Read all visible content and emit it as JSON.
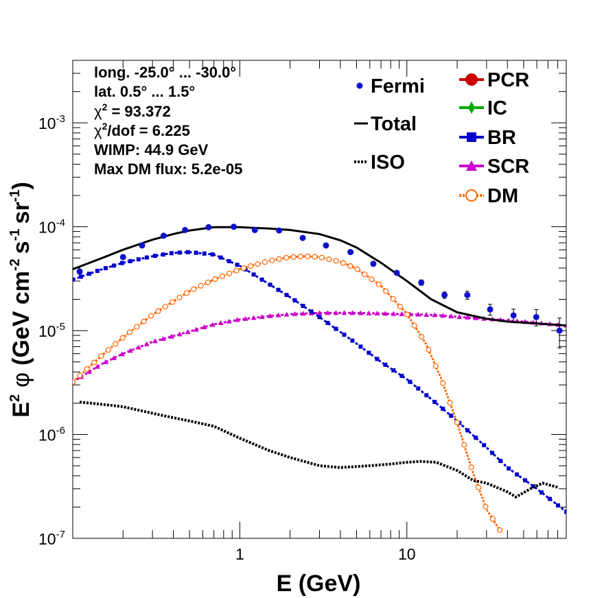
{
  "chart_data": {
    "type": "scatter",
    "xlabel": "E (GeV)",
    "ylabel_parts": {
      "pre": "E",
      "pre_sup": "2",
      "phi": "φ",
      "unit_open": "(GeV cm",
      "cm_exp": "-2",
      "s": "s",
      "s_exp": "-1",
      "sr": "sr",
      "sr_exp": "-1",
      "unit_close": ")"
    },
    "x_scale": "log",
    "y_scale": "log",
    "xlim": [
      0.1,
      90
    ],
    "ylim": [
      1e-07,
      0.004
    ],
    "x_tick_labels": [
      {
        "value": 1,
        "label": "1"
      },
      {
        "value": 10,
        "label": "10"
      }
    ],
    "y_tick_labels": [
      {
        "value": 1e-07,
        "mantissa": "10",
        "exp": "-7"
      },
      {
        "value": 1e-06,
        "mantissa": "10",
        "exp": "-6"
      },
      {
        "value": 1e-05,
        "mantissa": "10",
        "exp": "-5"
      },
      {
        "value": 0.0001,
        "mantissa": "10",
        "exp": "-4"
      },
      {
        "value": 0.001,
        "mantissa": "10",
        "exp": "-3"
      }
    ],
    "info_lines": [
      {
        "text": "long. -25.0° ... -30.0°"
      },
      {
        "text": "lat. 0.5° ... 1.5°"
      },
      {
        "chi": "χ",
        "sup": "2",
        "rest": " = 93.372"
      },
      {
        "chi": "χ",
        "sup": "2",
        "rest": "/dof = 6.225"
      },
      {
        "text": "WIMP: 44.9 GeV"
      },
      {
        "text": "Max DM flux: 5.2e-05"
      }
    ],
    "legend_left": [
      {
        "label": "Fermi",
        "symbol": "dot",
        "color": "#1010cc"
      },
      {
        "label": "Total",
        "symbol": "line",
        "color": "#000000"
      },
      {
        "label": "ISO",
        "symbol": "dotted",
        "color": "#000000"
      }
    ],
    "legend_right": [
      {
        "label": "PCR",
        "symbol": "circle",
        "color": "#cc0000"
      },
      {
        "label": "IC",
        "symbol": "diamond",
        "color": "#00aa00"
      },
      {
        "label": "BR",
        "symbol": "square",
        "color": "#0000cc"
      },
      {
        "label": "SCR",
        "symbol": "triangle",
        "color": "#cc00cc"
      },
      {
        "label": "DM",
        "symbol": "open-circle",
        "color": "#ff6600"
      }
    ],
    "series": [
      {
        "name": "Fermi",
        "kind": "points",
        "color": "#1010cc",
        "x": [
          0.11,
          0.2,
          0.26,
          0.35,
          0.47,
          0.65,
          0.92,
          1.23,
          1.72,
          2.38,
          3.28,
          4.6,
          6.3,
          8.7,
          12.2,
          16.8,
          23.0,
          31.5,
          43.5,
          59.5,
          82.0
        ],
        "y": [
          3.7e-05,
          5.1e-05,
          6.6e-05,
          8.2e-05,
          9.3e-05,
          9.9e-05,
          0.0001,
          9.3e-05,
          9.2e-05,
          7.8e-05,
          6.6e-05,
          5.7e-05,
          4.4e-05,
          3.6e-05,
          2.9e-05,
          2.2e-05,
          2.2e-05,
          1.6e-05,
          1.4e-05,
          1.35e-05,
          1e-05
        ],
        "err": [
          0.05,
          0.03,
          0.03,
          0.03,
          0.03,
          0.03,
          0.03,
          0.03,
          0.03,
          0.03,
          0.03,
          0.03,
          0.04,
          0.04,
          0.06,
          0.07,
          0.09,
          0.12,
          0.15,
          0.18,
          0.32
        ]
      },
      {
        "name": "Total",
        "kind": "line",
        "color": "#000000",
        "x": [
          0.1,
          0.15,
          0.2,
          0.3,
          0.4,
          0.5,
          0.7,
          1.0,
          1.5,
          2.0,
          3.0,
          4.0,
          5.0,
          7.0,
          10.0,
          14.0,
          20.0,
          30.0,
          40.0,
          60.0,
          90.0
        ],
        "y": [
          3.9e-05,
          5e-05,
          6e-05,
          7.5e-05,
          8.5e-05,
          9.2e-05,
          9.9e-05,
          9.9e-05,
          9.6e-05,
          9.3e-05,
          8.5e-05,
          7.4e-05,
          6.3e-05,
          4.5e-05,
          3e-05,
          2e-05,
          1.5e-05,
          1.3e-05,
          1.22e-05,
          1.17e-05,
          1.12e-05
        ]
      },
      {
        "name": "BR",
        "kind": "markers-square",
        "color": "#0000cc",
        "x": [
          0.1,
          0.15,
          0.2,
          0.3,
          0.4,
          0.5,
          0.7,
          1.0,
          1.5,
          2.0,
          3.0,
          5.0,
          7.0,
          10.0,
          15.0,
          20.0,
          30.0,
          40.0,
          60.0,
          90.0
        ],
        "y": [
          3.1e-05,
          3.9e-05,
          4.5e-05,
          5.2e-05,
          5.6e-05,
          5.7e-05,
          5.4e-05,
          4.2e-05,
          2.8e-05,
          2.1e-05,
          1.35e-05,
          7.5e-06,
          5e-06,
          3.4e-06,
          2e-06,
          1.35e-06,
          7.5e-07,
          4.8e-07,
          3e-07,
          1.8e-07
        ]
      },
      {
        "name": "SCR",
        "kind": "markers-triangle",
        "color": "#cc00cc",
        "x": [
          0.1,
          0.15,
          0.2,
          0.3,
          0.5,
          0.7,
          1.0,
          1.5,
          2.0,
          3.0,
          5.0,
          7.0,
          10.0,
          15.0,
          20.0,
          30.0,
          50.0,
          90.0
        ],
        "y": [
          3.2e-06,
          4.8e-06,
          6e-06,
          7.8e-06,
          9.8e-06,
          1.15e-05,
          1.28e-05,
          1.38e-05,
          1.44e-05,
          1.48e-05,
          1.48e-05,
          1.46e-05,
          1.44e-05,
          1.41e-05,
          1.36e-05,
          1.3e-05,
          1.22e-05,
          1.12e-05
        ]
      },
      {
        "name": "DM",
        "kind": "markers-open-circle",
        "color": "#ff6600",
        "x": [
          0.1,
          0.15,
          0.2,
          0.3,
          0.5,
          0.7,
          1.0,
          1.5,
          2.0,
          2.5,
          3.0,
          4.0,
          5.0,
          7.0,
          10.0,
          13.0,
          16.0,
          20.0,
          25.0,
          30.0,
          36.0
        ],
        "y": [
          3.2e-06,
          5.8e-06,
          8.6e-06,
          1.42e-05,
          2.4e-05,
          3.1e-05,
          3.9e-05,
          4.7e-05,
          5.1e-05,
          5.2e-05,
          5.1e-05,
          4.6e-05,
          3.95e-05,
          2.7e-05,
          1.45e-05,
          7.5e-06,
          3.5e-06,
          1.3e-06,
          4.2e-07,
          1.9e-07,
          1.2e-07
        ]
      },
      {
        "name": "ISO",
        "kind": "dotted",
        "color": "#000000",
        "x": [
          0.11,
          0.15,
          0.2,
          0.3,
          0.4,
          0.5,
          0.7,
          1.0,
          1.5,
          2.0,
          3.0,
          4.0,
          6.0,
          8.0,
          10.0,
          12.0,
          15.0,
          20.0,
          25.0,
          30.0,
          40.0,
          45.0,
          55.0,
          65.0,
          80.0
        ],
        "y": [
          2.05e-06,
          1.95e-06,
          1.85e-06,
          1.6e-06,
          1.45e-06,
          1.35e-06,
          1.2e-06,
          9.2e-07,
          7e-07,
          6e-07,
          5e-07,
          4.8e-07,
          5e-07,
          5.2e-07,
          5.4e-07,
          5.5e-07,
          5.4e-07,
          4.5e-07,
          3.6e-07,
          3.4e-07,
          2.8e-07,
          2.5e-07,
          3e-07,
          3.4e-07,
          3.1e-07
        ]
      }
    ]
  }
}
